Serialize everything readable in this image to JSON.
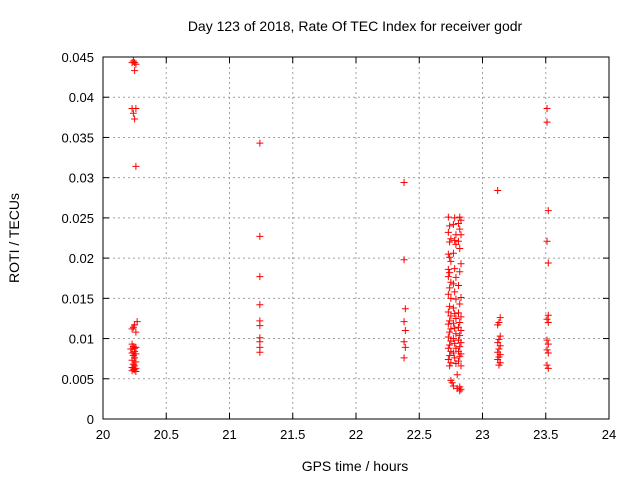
{
  "chart_data": {
    "type": "scatter",
    "title": "Day 123 of 2018, Rate Of TEC Index for receiver godr",
    "xlabel": "GPS time / hours",
    "ylabel": "ROTI / TECUs",
    "xlim": [
      20,
      24
    ],
    "ylim": [
      0,
      0.045
    ],
    "x_ticks": [
      20,
      20.5,
      21,
      21.5,
      22,
      22.5,
      23,
      23.5,
      24
    ],
    "x_tick_labels": [
      "20",
      "20.5",
      "21",
      "21.5",
      "22",
      "22.5",
      "23",
      "23.5",
      "24"
    ],
    "y_ticks": [
      0,
      0.005,
      0.01,
      0.015,
      0.02,
      0.025,
      0.03,
      0.035,
      0.04,
      0.045
    ],
    "y_tick_labels": [
      "0",
      "0.005",
      "0.01",
      "0.015",
      "0.02",
      "0.025",
      "0.03",
      "0.035",
      "0.04",
      "0.045"
    ],
    "grid": true,
    "marker": "+",
    "marker_color": "#ff0000",
    "series": [
      {
        "name": "ROTI",
        "points": [
          [
            20.24,
            0.0445
          ],
          [
            20.25,
            0.0443
          ],
          [
            20.26,
            0.0441
          ],
          [
            20.23,
            0.0443
          ],
          [
            20.25,
            0.0433
          ],
          [
            20.23,
            0.0386
          ],
          [
            20.26,
            0.0386
          ],
          [
            20.24,
            0.038
          ],
          [
            20.25,
            0.0373
          ],
          [
            20.26,
            0.0314
          ],
          [
            20.27,
            0.0121
          ],
          [
            20.25,
            0.0117
          ],
          [
            20.23,
            0.0112
          ],
          [
            20.26,
            0.0108
          ],
          [
            20.24,
            0.0114
          ],
          [
            20.23,
            0.0093
          ],
          [
            20.24,
            0.009
          ],
          [
            20.25,
            0.0088
          ],
          [
            20.26,
            0.0089
          ],
          [
            20.22,
            0.0087
          ],
          [
            20.25,
            0.0084
          ],
          [
            20.23,
            0.0082
          ],
          [
            20.26,
            0.0081
          ],
          [
            20.24,
            0.0079
          ],
          [
            20.25,
            0.0076
          ],
          [
            20.23,
            0.0073
          ],
          [
            20.26,
            0.0071
          ],
          [
            20.24,
            0.0068
          ],
          [
            20.25,
            0.0066
          ],
          [
            20.23,
            0.0064
          ],
          [
            20.26,
            0.0063
          ],
          [
            20.24,
            0.0062
          ],
          [
            20.25,
            0.0061
          ],
          [
            20.23,
            0.006
          ],
          [
            20.26,
            0.0059
          ],
          [
            21.24,
            0.0343
          ],
          [
            21.24,
            0.0227
          ],
          [
            21.24,
            0.0177
          ],
          [
            21.24,
            0.0142
          ],
          [
            21.24,
            0.0122
          ],
          [
            21.24,
            0.0116
          ],
          [
            21.24,
            0.0101
          ],
          [
            21.24,
            0.0096
          ],
          [
            21.24,
            0.0089
          ],
          [
            21.24,
            0.0083
          ],
          [
            22.38,
            0.0294
          ],
          [
            22.38,
            0.0198
          ],
          [
            22.39,
            0.0137
          ],
          [
            22.38,
            0.0121
          ],
          [
            22.39,
            0.011
          ],
          [
            22.38,
            0.0096
          ],
          [
            22.39,
            0.0089
          ],
          [
            22.38,
            0.0076
          ],
          [
            22.73,
            0.0251
          ],
          [
            22.74,
            0.024
          ],
          [
            22.73,
            0.0232
          ],
          [
            22.75,
            0.0224
          ],
          [
            22.74,
            0.022
          ],
          [
            22.73,
            0.0205
          ],
          [
            22.74,
            0.0201
          ],
          [
            22.75,
            0.0196
          ],
          [
            22.73,
            0.0186
          ],
          [
            22.74,
            0.0182
          ],
          [
            22.73,
            0.0177
          ],
          [
            22.75,
            0.017
          ],
          [
            22.74,
            0.0163
          ],
          [
            22.73,
            0.0155
          ],
          [
            22.75,
            0.015
          ],
          [
            22.74,
            0.014
          ],
          [
            22.73,
            0.0133
          ],
          [
            22.75,
            0.0128
          ],
          [
            22.74,
            0.0122
          ],
          [
            22.73,
            0.0118
          ],
          [
            22.75,
            0.0112
          ],
          [
            22.74,
            0.0108
          ],
          [
            22.73,
            0.0102
          ],
          [
            22.75,
            0.0097
          ],
          [
            22.74,
            0.0092
          ],
          [
            22.73,
            0.0088
          ],
          [
            22.75,
            0.0084
          ],
          [
            22.74,
            0.0079
          ],
          [
            22.73,
            0.0074
          ],
          [
            22.75,
            0.007
          ],
          [
            22.74,
            0.0066
          ],
          [
            22.75,
            0.0048
          ],
          [
            22.76,
            0.0045
          ],
          [
            22.77,
            0.0041
          ],
          [
            22.78,
            0.025
          ],
          [
            22.77,
            0.0242
          ],
          [
            22.79,
            0.0229
          ],
          [
            22.78,
            0.0222
          ],
          [
            22.79,
            0.0217
          ],
          [
            22.77,
            0.0206
          ],
          [
            22.78,
            0.0187
          ],
          [
            22.79,
            0.0176
          ],
          [
            22.77,
            0.0168
          ],
          [
            22.78,
            0.0158
          ],
          [
            22.79,
            0.0149
          ],
          [
            22.77,
            0.0138
          ],
          [
            22.78,
            0.0131
          ],
          [
            22.79,
            0.0125
          ],
          [
            22.77,
            0.0119
          ],
          [
            22.78,
            0.0113
          ],
          [
            22.79,
            0.0106
          ],
          [
            22.77,
            0.01
          ],
          [
            22.78,
            0.0094
          ],
          [
            22.79,
            0.0088
          ],
          [
            22.77,
            0.0082
          ],
          [
            22.78,
            0.0076
          ],
          [
            22.79,
            0.0069
          ],
          [
            22.8,
            0.0055
          ],
          [
            22.8,
            0.0038
          ],
          [
            22.82,
            0.0251
          ],
          [
            22.83,
            0.0247
          ],
          [
            22.81,
            0.0243
          ],
          [
            22.82,
            0.0236
          ],
          [
            22.83,
            0.0229
          ],
          [
            22.81,
            0.0221
          ],
          [
            22.82,
            0.0212
          ],
          [
            22.83,
            0.0193
          ],
          [
            22.82,
            0.0183
          ],
          [
            22.81,
            0.0166
          ],
          [
            22.83,
            0.0151
          ],
          [
            22.82,
            0.0143
          ],
          [
            22.81,
            0.0132
          ],
          [
            22.83,
            0.0127
          ],
          [
            22.82,
            0.012
          ],
          [
            22.81,
            0.0114
          ],
          [
            22.83,
            0.011
          ],
          [
            22.82,
            0.0104
          ],
          [
            22.81,
            0.0098
          ],
          [
            22.83,
            0.0095
          ],
          [
            22.82,
            0.009
          ],
          [
            22.81,
            0.0084
          ],
          [
            22.83,
            0.0081
          ],
          [
            22.82,
            0.0078
          ],
          [
            22.81,
            0.0072
          ],
          [
            22.83,
            0.0066
          ],
          [
            22.82,
            0.004
          ],
          [
            22.83,
            0.0037
          ],
          [
            22.82,
            0.0035
          ],
          [
            23.12,
            0.0284
          ],
          [
            23.14,
            0.0126
          ],
          [
            23.13,
            0.012
          ],
          [
            23.12,
            0.0117
          ],
          [
            23.14,
            0.0103
          ],
          [
            23.13,
            0.0099
          ],
          [
            23.12,
            0.0095
          ],
          [
            23.14,
            0.0091
          ],
          [
            23.13,
            0.0087
          ],
          [
            23.12,
            0.0083
          ],
          [
            23.14,
            0.008
          ],
          [
            23.13,
            0.0077
          ],
          [
            23.12,
            0.0074
          ],
          [
            23.14,
            0.007
          ],
          [
            23.13,
            0.0067
          ],
          [
            23.51,
            0.0386
          ],
          [
            23.51,
            0.0369
          ],
          [
            23.52,
            0.0259
          ],
          [
            23.51,
            0.0221
          ],
          [
            23.52,
            0.0194
          ],
          [
            23.52,
            0.0129
          ],
          [
            23.51,
            0.0124
          ],
          [
            23.52,
            0.012
          ],
          [
            23.51,
            0.0098
          ],
          [
            23.52,
            0.0093
          ],
          [
            23.51,
            0.0086
          ],
          [
            23.52,
            0.0082
          ],
          [
            23.51,
            0.0067
          ],
          [
            23.52,
            0.0063
          ]
        ]
      }
    ]
  }
}
